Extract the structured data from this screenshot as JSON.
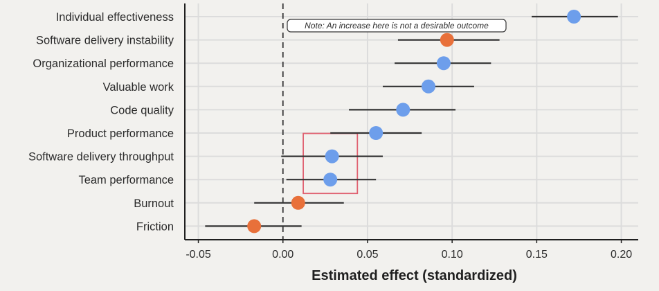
{
  "chart_data": {
    "type": "forest",
    "title": "",
    "xlabel": "Estimated effect (standardized)",
    "ylabel": "",
    "xlim": [
      -0.058,
      0.21
    ],
    "xticks": [
      -0.05,
      0.0,
      0.05,
      0.1,
      0.15,
      0.2
    ],
    "xtick_labels": [
      "-0.05",
      "0.00",
      "0.05",
      "0.10",
      "0.15",
      "0.20"
    ],
    "grid": true,
    "reference_line": 0.0,
    "annotation": "Note: An increase here is not a desirable outcome",
    "colors": {
      "desirable": "#6d9eeb",
      "undesirable": "#e8703a",
      "interval": "#333333",
      "highlight_box": "#e06070",
      "grid": "#dcdcdc"
    },
    "points": [
      {
        "label": "Individual effectiveness",
        "estimate": 0.172,
        "ci_low": 0.147,
        "ci_high": 0.198,
        "group": "desirable"
      },
      {
        "label": "Software delivery instability",
        "estimate": 0.097,
        "ci_low": 0.068,
        "ci_high": 0.128,
        "group": "undesirable"
      },
      {
        "label": "Organizational performance",
        "estimate": 0.095,
        "ci_low": 0.066,
        "ci_high": 0.123,
        "group": "desirable"
      },
      {
        "label": "Valuable work",
        "estimate": 0.086,
        "ci_low": 0.059,
        "ci_high": 0.113,
        "group": "desirable"
      },
      {
        "label": "Code quality",
        "estimate": 0.071,
        "ci_low": 0.039,
        "ci_high": 0.102,
        "group": "desirable"
      },
      {
        "label": "Product performance",
        "estimate": 0.055,
        "ci_low": 0.028,
        "ci_high": 0.082,
        "group": "desirable"
      },
      {
        "label": "Software delivery throughput",
        "estimate": 0.029,
        "ci_low": -0.001,
        "ci_high": 0.059,
        "group": "desirable"
      },
      {
        "label": "Team performance",
        "estimate": 0.028,
        "ci_low": 0.002,
        "ci_high": 0.055,
        "group": "desirable"
      },
      {
        "label": "Burnout",
        "estimate": 0.009,
        "ci_low": -0.017,
        "ci_high": 0.036,
        "group": "undesirable"
      },
      {
        "label": "Friction",
        "estimate": -0.017,
        "ci_low": -0.046,
        "ci_high": 0.011,
        "group": "undesirable"
      }
    ],
    "highlighted": [
      "Software delivery throughput",
      "Team performance"
    ]
  }
}
